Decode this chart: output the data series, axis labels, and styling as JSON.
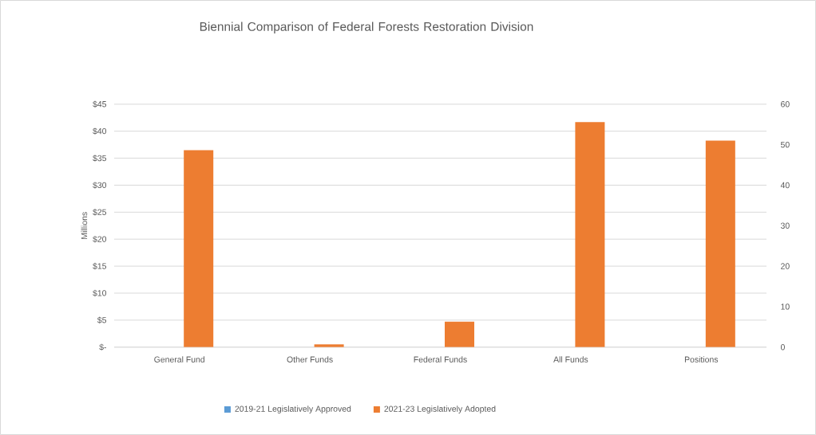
{
  "chart_data": {
    "type": "bar",
    "title": "Biennial Comparison of Federal Forests Restoration Division",
    "ylabel": "Millions",
    "categories": [
      "General Fund",
      "Other Funds",
      "Federal Funds",
      "All Funds",
      "Positions"
    ],
    "series": [
      {
        "name": "2019-21 Legislatively Approved",
        "color": "#5b9bd5",
        "values": [
          0,
          0,
          0,
          0,
          null
        ]
      },
      {
        "name": "2021-23 Legislatively Adopted",
        "color": "#ed7d31",
        "values": [
          36.5,
          0.5,
          4.7,
          41.7,
          null
        ]
      },
      {
        "color": "#5b9bd5",
        "axis": "y2",
        "values": [
          null,
          null,
          null,
          null,
          0
        ]
      },
      {
        "color": "#ed7d31",
        "axis": "y2",
        "values": [
          null,
          null,
          null,
          null,
          51
        ]
      }
    ],
    "ylim": [
      0,
      45
    ],
    "yticks": [
      {
        "value": 0,
        "label": "$-"
      },
      {
        "value": 5,
        "label": "$5"
      },
      {
        "value": 10,
        "label": "$10"
      },
      {
        "value": 15,
        "label": "$15"
      },
      {
        "value": 20,
        "label": "$20"
      },
      {
        "value": 25,
        "label": "$25"
      },
      {
        "value": 30,
        "label": "$30"
      },
      {
        "value": 35,
        "label": "$35"
      },
      {
        "value": 40,
        "label": "$40"
      },
      {
        "value": 45,
        "label": "$45"
      }
    ],
    "y2lim": [
      0,
      60
    ],
    "y2ticks": [
      0,
      10,
      20,
      30,
      40,
      50,
      60
    ],
    "grid": "y",
    "legend": "bottom"
  }
}
